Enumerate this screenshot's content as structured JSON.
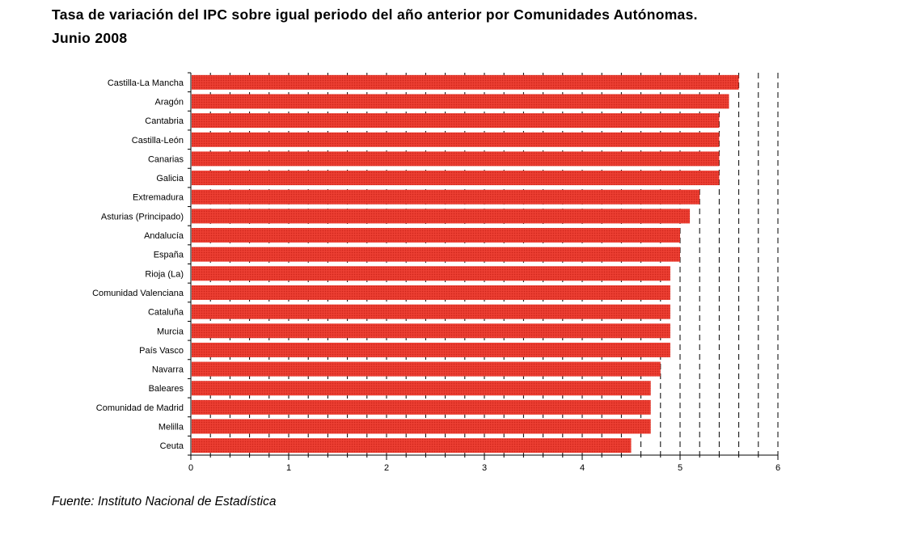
{
  "title_line1": "Tasa de variación del IPC sobre igual periodo del año anterior por Comunidades Autónomas.",
  "title_line2": "Junio 2008",
  "source": "Fuente: Instituto Nacional de Estadística",
  "chart_data": {
    "type": "bar",
    "orientation": "horizontal",
    "categories": [
      "Castilla-La Mancha",
      "Aragón",
      "Cantabria",
      "Castilla-León",
      "Canarias",
      "Galicia",
      "Extremadura",
      "Asturias (Principado)",
      "Andalucía",
      "España",
      "Rioja (La)",
      "Comunidad Valenciana",
      "Cataluña",
      "Murcia",
      "País Vasco",
      "Navarra",
      "Baleares",
      "Comunidad de Madrid",
      "Melilla",
      "Ceuta"
    ],
    "values": [
      5.6,
      5.5,
      5.4,
      5.4,
      5.4,
      5.4,
      5.2,
      5.1,
      5.0,
      5.0,
      4.9,
      4.9,
      4.9,
      4.9,
      4.9,
      4.8,
      4.7,
      4.7,
      4.7,
      4.5
    ],
    "xlim": [
      0,
      6
    ],
    "xticks": [
      "0",
      "1",
      "2",
      "3",
      "4",
      "5",
      "6"
    ],
    "grid": "vertical dashed lines every 0.2",
    "bar_color": "#e8372b",
    "legend": "none"
  }
}
